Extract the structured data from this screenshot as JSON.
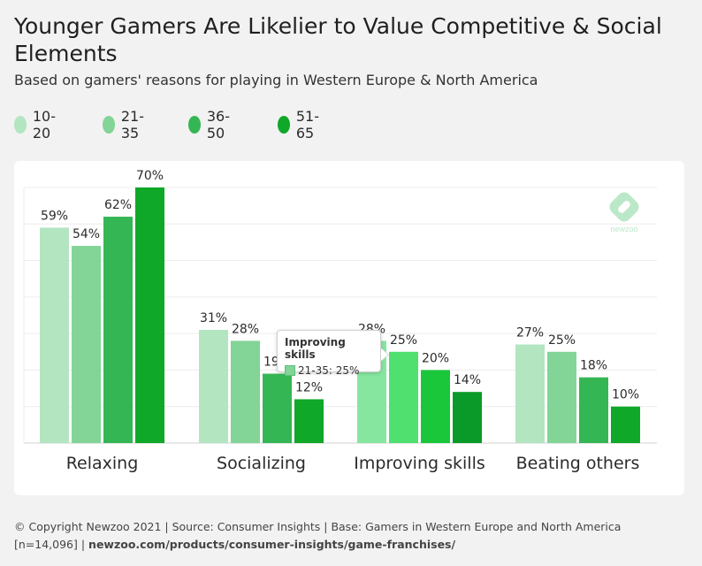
{
  "title": "Younger Gamers Are Likelier to Value Competitive & Social Elements",
  "subtitle": "Based on gamers' reasons for playing in Western Europe & North America",
  "legend": [
    {
      "label": "10-20",
      "color": "#b3e5c1"
    },
    {
      "label": "21-35",
      "color": "#82d497"
    },
    {
      "label": "36-50",
      "color": "#35b655"
    },
    {
      "label": "51-65",
      "color": "#0fa828"
    }
  ],
  "chart_data": {
    "type": "bar",
    "categories": [
      "Relaxing",
      "Socializing",
      "Improving skills",
      "Beating others"
    ],
    "series": [
      {
        "name": "10-20",
        "values": [
          59,
          31,
          28,
          27
        ]
      },
      {
        "name": "21-35",
        "values": [
          54,
          28,
          25,
          25
        ]
      },
      {
        "name": "36-50",
        "values": [
          62,
          19,
          20,
          18
        ]
      },
      {
        "name": "51-65",
        "values": [
          70,
          12,
          14,
          10
        ]
      }
    ],
    "value_labels": [
      [
        "59%",
        "31%",
        "28%",
        "27%"
      ],
      [
        "54%",
        "28%",
        "25%",
        "25%"
      ],
      [
        "62%",
        "19%",
        "20%",
        "18%"
      ],
      [
        "70%",
        "12%",
        "14%",
        "10%"
      ]
    ],
    "ylim": [
      0,
      70
    ],
    "grid": true,
    "highlighted_category_colors": [
      "#86e69f",
      "#4fe06f",
      "#1ac73b",
      "#0a9a29"
    ]
  },
  "tooltip": {
    "title": "Improving skills",
    "text": "21-35: 25%"
  },
  "logo_text": "newzoo",
  "footer": {
    "line1": "© Copyright Newzoo 2021 | Source: Consumer Insights | Base: Gamers in Western Europe and North America",
    "line2_prefix": "[n=14,096] | ",
    "line2_link": "newzoo.com/products/consumer-insights/game-franchises/"
  }
}
